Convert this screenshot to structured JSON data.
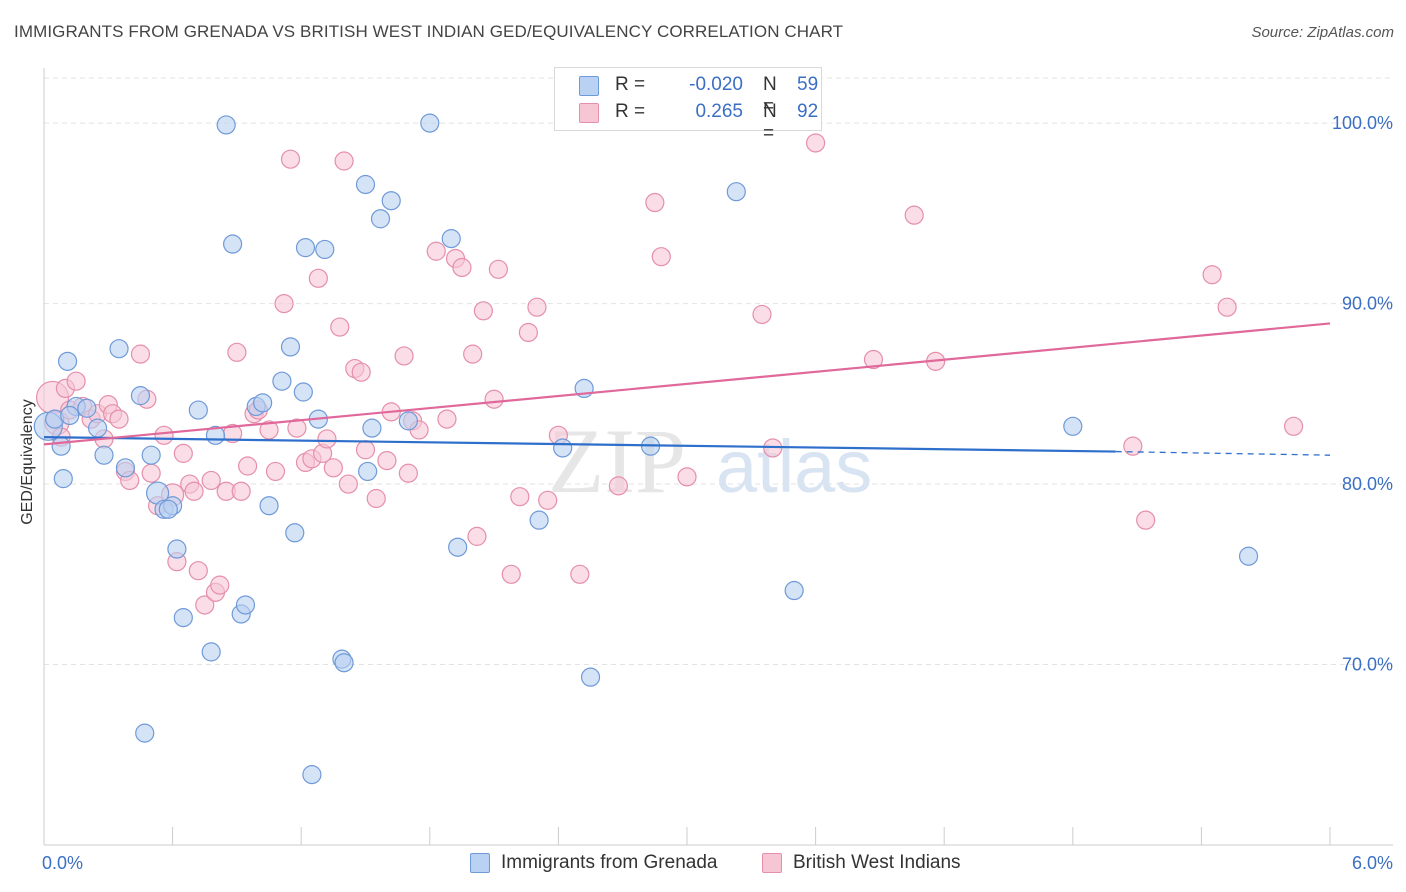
{
  "title": "IMMIGRANTS FROM GRENADA VS BRITISH WEST INDIAN GED/EQUIVALENCY CORRELATION CHART",
  "source": "Source: ZipAtlas.com",
  "watermark": {
    "zip": "ZIP",
    "atlas": "atlas"
  },
  "colors": {
    "blue_fill": "#b9d1f2",
    "blue_stroke": "#6f9ad8",
    "blue_line": "#2e6fcc",
    "pink_fill": "#f7c6d5",
    "pink_stroke": "#e58fab",
    "pink_line": "#e0689a",
    "axis_text": "#3b6fc4",
    "grid": "#e3e3e3"
  },
  "legend": {
    "blue": {
      "r_label": "R = ",
      "r_value": "-0.020",
      "n_label": "N = ",
      "n_value": "59"
    },
    "pink": {
      "r_label": "R = ",
      "r_value": "0.265",
      "n_label": "N = ",
      "n_value": "92"
    }
  },
  "chart_data": {
    "type": "scatter",
    "xlabel": "",
    "ylabel": "GED/Equivalency",
    "xlim": [
      0,
      6
    ],
    "ylim": [
      60,
      102.5
    ],
    "x_tick_labels": {
      "left": "0.0%",
      "right": "6.0%"
    },
    "y_ticks": [
      {
        "value": 70,
        "label": "70.0%"
      },
      {
        "value": 80,
        "label": "80.0%"
      },
      {
        "value": 90,
        "label": "90.0%"
      },
      {
        "value": 100,
        "label": "100.0%"
      }
    ],
    "grid": true,
    "legend_position": "top-center",
    "series": [
      {
        "name": "Immigrants from Grenada",
        "color": "blue",
        "trend": {
          "x0": 0.0,
          "y0": 82.6,
          "x1": 5.0,
          "y1": 81.8,
          "dash_to_x": 6.0,
          "dash_y": 81.6
        },
        "points": [
          [
            0.02,
            83.2,
            14
          ],
          [
            0.05,
            83.6,
            9
          ],
          [
            0.08,
            82.1,
            9
          ],
          [
            0.09,
            80.3,
            9
          ],
          [
            0.11,
            86.8,
            9
          ],
          [
            0.15,
            84.3,
            9
          ],
          [
            0.2,
            84.2,
            9
          ],
          [
            0.25,
            83.1,
            9
          ],
          [
            0.28,
            81.6,
            9
          ],
          [
            0.35,
            87.5,
            9
          ],
          [
            0.38,
            80.9,
            9
          ],
          [
            0.45,
            84.9,
            9
          ],
          [
            0.53,
            79.5,
            11
          ],
          [
            0.56,
            78.6,
            9
          ],
          [
            0.6,
            78.8,
            9
          ],
          [
            0.62,
            76.4,
            9
          ],
          [
            0.65,
            72.6,
            9
          ],
          [
            0.72,
            84.1,
            9
          ],
          [
            0.78,
            70.7,
            9
          ],
          [
            0.8,
            82.7,
            9
          ],
          [
            0.85,
            99.9,
            9
          ],
          [
            0.88,
            93.3,
            9
          ],
          [
            0.92,
            72.8,
            9
          ],
          [
            0.94,
            73.3,
            9
          ],
          [
            0.99,
            84.3,
            9
          ],
          [
            1.02,
            84.5,
            9
          ],
          [
            1.05,
            78.8,
            9
          ],
          [
            1.11,
            85.7,
            9
          ],
          [
            1.15,
            87.6,
            9
          ],
          [
            1.17,
            77.3,
            9
          ],
          [
            1.21,
            85.1,
            9
          ],
          [
            1.22,
            93.1,
            9
          ],
          [
            1.25,
            63.9,
            9
          ],
          [
            1.28,
            83.6,
            9
          ],
          [
            1.31,
            93.0,
            9
          ],
          [
            1.39,
            70.3,
            9
          ],
          [
            1.4,
            70.1,
            9
          ],
          [
            1.5,
            96.6,
            9
          ],
          [
            1.51,
            80.7,
            9
          ],
          [
            1.53,
            83.1,
            9
          ],
          [
            1.57,
            94.7,
            9
          ],
          [
            1.62,
            95.7,
            9
          ],
          [
            1.7,
            83.5,
            9
          ],
          [
            1.8,
            100.0,
            9
          ],
          [
            1.9,
            93.6,
            9
          ],
          [
            1.93,
            76.5,
            9
          ],
          [
            2.31,
            78.0,
            9
          ],
          [
            2.42,
            82.0,
            9
          ],
          [
            2.52,
            85.3,
            9
          ],
          [
            2.55,
            69.3,
            9
          ],
          [
            2.83,
            82.1,
            9
          ],
          [
            3.23,
            96.2,
            9
          ],
          [
            3.5,
            74.1,
            9
          ],
          [
            4.8,
            83.2,
            9
          ],
          [
            5.62,
            76.0,
            9
          ],
          [
            0.58,
            78.6,
            9
          ],
          [
            0.5,
            81.6,
            9
          ],
          [
            0.47,
            66.2,
            9
          ],
          [
            0.12,
            83.8,
            9
          ]
        ]
      },
      {
        "name": "British West Indians",
        "color": "pink",
        "trend": {
          "x0": 0.0,
          "y0": 82.2,
          "x1": 6.0,
          "y1": 88.9
        },
        "points": [
          [
            0.04,
            84.8,
            16
          ],
          [
            0.06,
            83.4,
            12
          ],
          [
            0.08,
            82.6,
            9
          ],
          [
            0.1,
            85.3,
            9
          ],
          [
            0.12,
            84.1,
            9
          ],
          [
            0.15,
            85.7,
            9
          ],
          [
            0.18,
            84.3,
            9
          ],
          [
            0.22,
            83.6,
            9
          ],
          [
            0.25,
            83.9,
            9
          ],
          [
            0.28,
            82.5,
            9
          ],
          [
            0.3,
            84.4,
            9
          ],
          [
            0.32,
            83.9,
            9
          ],
          [
            0.35,
            83.6,
            9
          ],
          [
            0.38,
            80.7,
            9
          ],
          [
            0.4,
            80.2,
            9
          ],
          [
            0.45,
            87.2,
            9
          ],
          [
            0.48,
            84.7,
            9
          ],
          [
            0.5,
            80.6,
            9
          ],
          [
            0.53,
            78.8,
            9
          ],
          [
            0.56,
            82.7,
            9
          ],
          [
            0.6,
            79.4,
            11
          ],
          [
            0.62,
            75.7,
            9
          ],
          [
            0.65,
            81.7,
            9
          ],
          [
            0.68,
            80.0,
            9
          ],
          [
            0.7,
            79.6,
            9
          ],
          [
            0.72,
            75.2,
            9
          ],
          [
            0.75,
            73.3,
            9
          ],
          [
            0.78,
            80.2,
            9
          ],
          [
            0.8,
            74.0,
            9
          ],
          [
            0.82,
            74.4,
            9
          ],
          [
            0.85,
            79.6,
            9
          ],
          [
            0.88,
            82.8,
            9
          ],
          [
            0.9,
            87.3,
            9
          ],
          [
            0.92,
            79.6,
            9
          ],
          [
            0.95,
            81.0,
            9
          ],
          [
            0.98,
            83.9,
            9
          ],
          [
            1.0,
            84.1,
            9
          ],
          [
            1.05,
            83.0,
            9
          ],
          [
            1.08,
            80.7,
            9
          ],
          [
            1.12,
            90.0,
            9
          ],
          [
            1.15,
            98.0,
            9
          ],
          [
            1.18,
            83.1,
            9
          ],
          [
            1.22,
            81.2,
            9
          ],
          [
            1.25,
            81.4,
            9
          ],
          [
            1.28,
            91.4,
            9
          ],
          [
            1.3,
            81.7,
            9
          ],
          [
            1.32,
            82.5,
            9
          ],
          [
            1.35,
            80.9,
            9
          ],
          [
            1.38,
            88.7,
            9
          ],
          [
            1.4,
            97.9,
            9
          ],
          [
            1.42,
            80.0,
            9
          ],
          [
            1.45,
            86.4,
            9
          ],
          [
            1.48,
            86.2,
            9
          ],
          [
            1.5,
            81.9,
            9
          ],
          [
            1.55,
            79.2,
            9
          ],
          [
            1.6,
            81.3,
            9
          ],
          [
            1.62,
            84.0,
            9
          ],
          [
            1.68,
            87.1,
            9
          ],
          [
            1.7,
            80.6,
            9
          ],
          [
            1.72,
            83.5,
            9
          ],
          [
            1.75,
            83.0,
            9
          ],
          [
            1.83,
            92.9,
            9
          ],
          [
            1.88,
            83.6,
            9
          ],
          [
            1.92,
            92.5,
            9
          ],
          [
            1.95,
            92.0,
            9
          ],
          [
            2.0,
            87.2,
            9
          ],
          [
            2.02,
            77.1,
            9
          ],
          [
            2.05,
            89.6,
            9
          ],
          [
            2.1,
            84.7,
            9
          ],
          [
            2.12,
            91.9,
            9
          ],
          [
            2.18,
            75.0,
            9
          ],
          [
            2.22,
            79.3,
            9
          ],
          [
            2.26,
            88.4,
            9
          ],
          [
            2.3,
            89.8,
            9
          ],
          [
            2.35,
            79.1,
            9
          ],
          [
            2.4,
            82.7,
            9
          ],
          [
            2.5,
            75.0,
            9
          ],
          [
            2.68,
            79.9,
            9
          ],
          [
            2.85,
            95.6,
            9
          ],
          [
            2.88,
            92.6,
            9
          ],
          [
            3.0,
            80.4,
            9
          ],
          [
            3.35,
            89.4,
            9
          ],
          [
            3.4,
            82.0,
            9
          ],
          [
            3.87,
            86.9,
            9
          ],
          [
            4.06,
            94.9,
            9
          ],
          [
            4.16,
            86.8,
            9
          ],
          [
            5.08,
            82.1,
            9
          ],
          [
            5.14,
            78.0,
            9
          ],
          [
            5.45,
            91.6,
            9
          ],
          [
            5.52,
            89.8,
            9
          ],
          [
            5.83,
            83.2,
            9
          ],
          [
            3.6,
            98.9,
            9
          ]
        ]
      }
    ]
  }
}
